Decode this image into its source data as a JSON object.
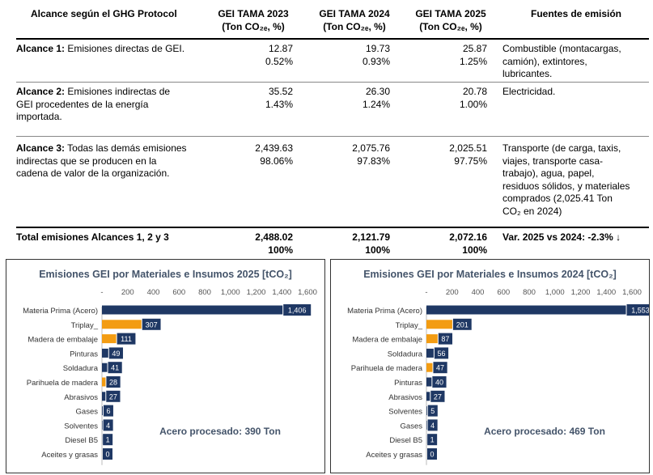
{
  "table": {
    "headers": {
      "scope": "Alcance según el GHG Protocol",
      "y2023_line1": "GEI TAMA 2023",
      "y2023_line2": "(Ton CO₂ₑ, %)",
      "y2024_line1": "GEI TAMA 2024",
      "y2024_line2": "(Ton CO₂ₑ, %)",
      "y2025_line1": "GEI TAMA 2025",
      "y2025_line2": "(Ton CO₂ₑ, %)",
      "sources": "Fuentes de emisión"
    },
    "rows": [
      {
        "scope_bold": "Alcance 1:",
        "scope_lines": [
          " Emisiones directas de GEI."
        ],
        "v2023": "12.87",
        "p2023": "0.52%",
        "v2024": "19.73",
        "p2024": "0.93%",
        "v2025": "25.87",
        "p2025": "1.25%",
        "source_lines": [
          "Combustible (montacargas,",
          "camión), extintores,",
          "lubricantes."
        ]
      },
      {
        "scope_bold": "Alcance 2:",
        "scope_lines": [
          " Emisiones indirectas de",
          "GEI procedentes de la energía",
          "importada."
        ],
        "v2023": "35.52",
        "p2023": "1.43%",
        "v2024": "26.30",
        "p2024": "1.24%",
        "v2025": "20.78",
        "p2025": "1.00%",
        "source_lines": [
          "Electricidad."
        ]
      },
      {
        "scope_bold": "Alcance 3:",
        "scope_lines": [
          " Todas las demás emisiones",
          "indirectas que se producen en la",
          "cadena de valor de la organización."
        ],
        "v2023": "2,439.63",
        "p2023": "98.06%",
        "v2024": "2,075.76",
        "p2024": "97.83%",
        "v2025": "2,025.51",
        "p2025": "97.75%",
        "source_lines": [
          "Transporte (de carga, taxis,",
          "viajes, transporte casa-",
          "trabajo), agua, papel,",
          "residuos sólidos, y materiales",
          "comprados (2,025.41 Ton",
          "CO₂ en 2024)"
        ]
      }
    ],
    "total": {
      "label": "Total emisiones Alcances 1, 2 y 3",
      "v2023": "2,488.02",
      "p2023": "100%",
      "v2024": "2,121.79",
      "p2024": "100%",
      "v2025": "2,072.16",
      "p2025": "100%",
      "var_text": "Var. 2025 vs 2024: -2.3% ↓"
    }
  },
  "colors": {
    "navy": "#1f3864",
    "orange": "#f39c12",
    "title": "#44546a"
  },
  "chart_data": [
    {
      "type": "bar",
      "orientation": "horizontal",
      "title": "Emisiones GEI por Materiales e Insumos 2025 [tCO₂]",
      "categories": [
        "Materia Prima (Acero)",
        "Triplay_",
        "Madera de embalaje",
        "Pinturas",
        "Soldadura",
        "Parihuela de madera",
        "Abrasivos",
        "Gases",
        "Solventes",
        "Diesel B5",
        "Aceites y grasas"
      ],
      "values": [
        1406,
        307,
        111,
        49,
        41,
        28,
        27,
        6,
        4,
        1,
        0
      ],
      "labels": [
        "1,406",
        "307",
        "111",
        "49",
        "41",
        "28",
        "27",
        "6",
        "4",
        "1",
        "0"
      ],
      "colors": [
        "navy",
        "orange",
        "orange",
        "navy",
        "navy",
        "orange",
        "navy",
        "navy",
        "navy",
        "navy",
        "navy"
      ],
      "xlim": [
        0,
        1600
      ],
      "ticks": [
        "-",
        "200",
        "400",
        "600",
        "800",
        "1,000",
        "1,200",
        "1,400",
        "1,600"
      ],
      "annotation": "Acero procesado: 390 Ton"
    },
    {
      "type": "bar",
      "orientation": "horizontal",
      "title": "Emisiones GEI por Materiales e Insumos 2024 [tCO₂]",
      "categories": [
        "Materia Prima (Acero)",
        "Triplay_",
        "Madera de embalaje",
        "Soldadura",
        "Parihuela de madera",
        "Pinturas",
        "Abrasivos",
        "Solventes",
        "Gases",
        "Diesel B5",
        "Aceites y grasas"
      ],
      "values": [
        1553,
        201,
        87,
        56,
        47,
        40,
        27,
        5,
        4,
        1,
        0
      ],
      "labels": [
        "1,553",
        "201",
        "87",
        "56",
        "47",
        "40",
        "27",
        "5",
        "4",
        "1",
        "0"
      ],
      "colors": [
        "navy",
        "orange",
        "orange",
        "navy",
        "orange",
        "navy",
        "navy",
        "navy",
        "navy",
        "navy",
        "navy"
      ],
      "xlim": [
        0,
        1600
      ],
      "ticks": [
        "-",
        "200",
        "400",
        "600",
        "800",
        "1,000",
        "1,200",
        "1,400",
        "1,600"
      ],
      "annotation": "Acero procesado: 469 Ton"
    }
  ]
}
